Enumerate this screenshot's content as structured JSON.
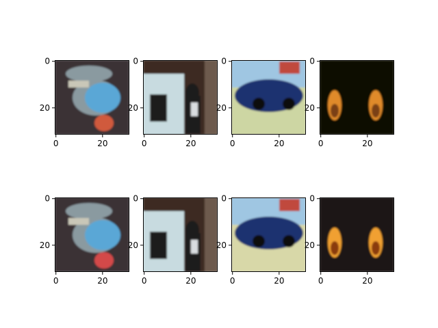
{
  "chart_data": {
    "type": "image-grid",
    "rows": 2,
    "cols": 4,
    "axis_range": [
      0,
      31
    ],
    "xticks": [
      0,
      20
    ],
    "yticks": [
      0,
      20
    ],
    "panels": [
      {
        "row": 0,
        "col": 0,
        "subject": "bird",
        "colors": [
          "#3b3035",
          "#8a9aa0",
          "#5aa7d6",
          "#d05a3c"
        ]
      },
      {
        "row": 0,
        "col": 1,
        "subject": "horse and rider",
        "colors": [
          "#3e2a24",
          "#c8dbe0",
          "#1c1a1a",
          "#6d5a4e"
        ]
      },
      {
        "row": 0,
        "col": 2,
        "subject": "blue car",
        "colors": [
          "#cdd6a3",
          "#1f3270",
          "#9fc6e2",
          "#c0483e"
        ]
      },
      {
        "row": 0,
        "col": 3,
        "subject": "dark with orange shapes",
        "colors": [
          "#080706",
          "#e08a2c",
          "#7a3f12"
        ]
      },
      {
        "row": 1,
        "col": 0,
        "subject": "bird",
        "colors": [
          "#3b3035",
          "#8a9aa0",
          "#5aa7d6",
          "#d34a4a"
        ]
      },
      {
        "row": 1,
        "col": 1,
        "subject": "horse and rider",
        "colors": [
          "#3e2a24",
          "#c8dbe0",
          "#1c1a1a",
          "#6d5a4e"
        ]
      },
      {
        "row": 1,
        "col": 2,
        "subject": "blue car",
        "colors": [
          "#d8d8a8",
          "#1f3270",
          "#9fc6e2",
          "#c0483e"
        ]
      },
      {
        "row": 1,
        "col": 3,
        "subject": "dark with orange shapes",
        "colors": [
          "#1a1614",
          "#f0a030",
          "#8a3a10"
        ]
      }
    ]
  }
}
